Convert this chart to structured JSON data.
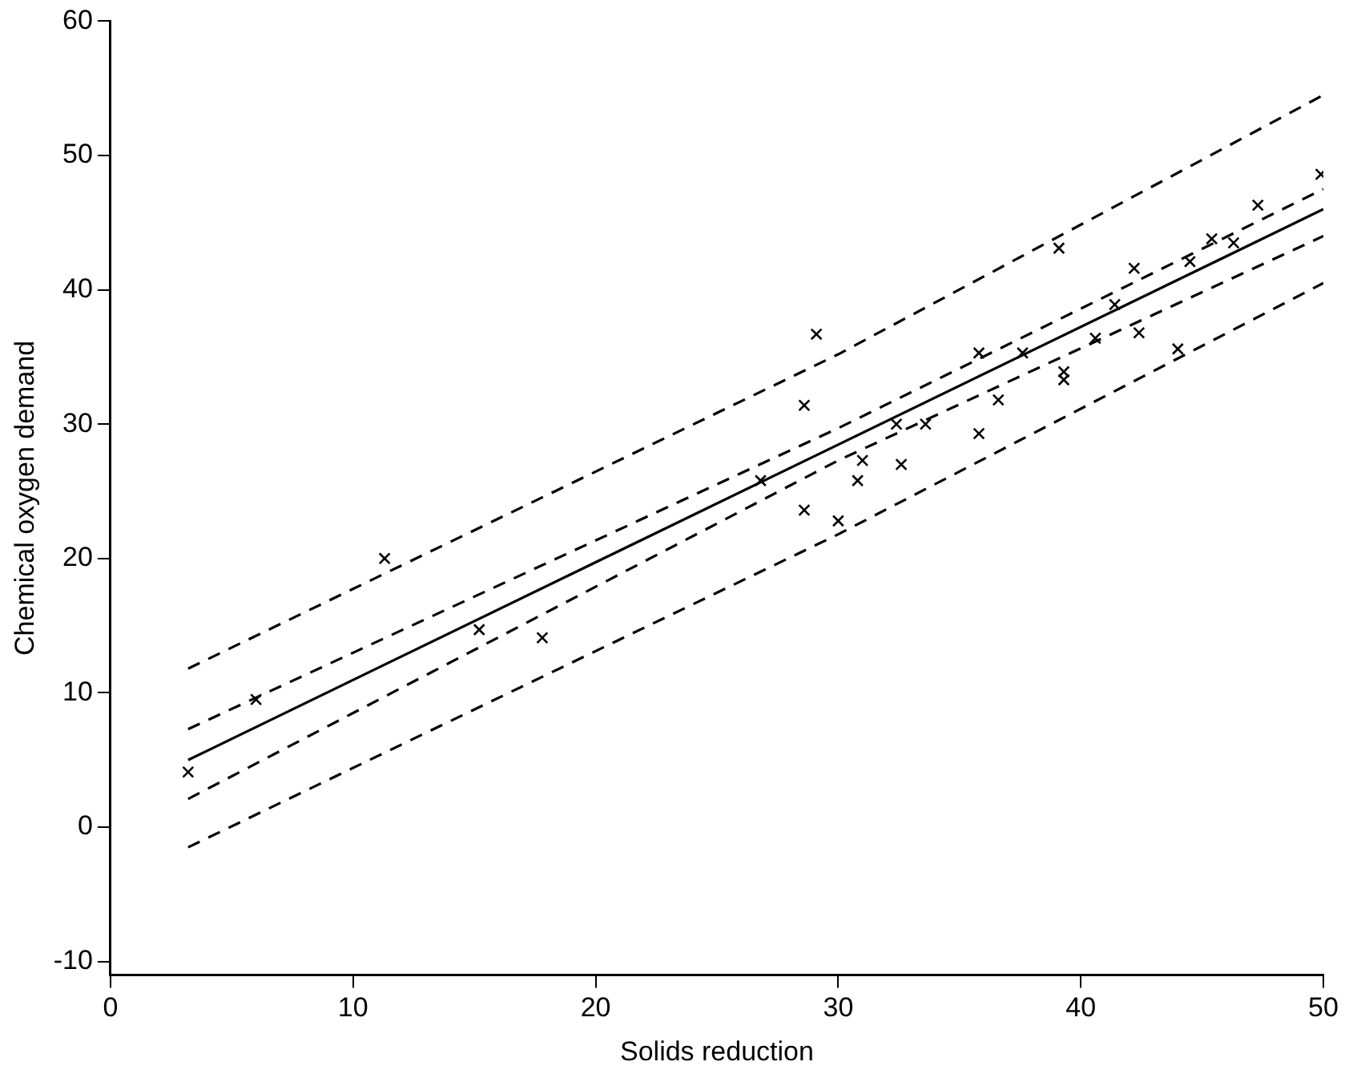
{
  "chart_data": {
    "type": "scatter",
    "xlabel": "Solids reduction",
    "ylabel": "Chemical oxygen demand",
    "xlim": [
      0,
      50
    ],
    "ylim": [
      -11,
      60
    ],
    "xticks": [
      0,
      10,
      20,
      30,
      40,
      50
    ],
    "yticks": [
      -10,
      0,
      10,
      20,
      30,
      40,
      50,
      60
    ],
    "grid": false,
    "legend": false,
    "marker": "cross",
    "series": [
      {
        "type": "scatter",
        "color": "#000000",
        "x": [
          3.2,
          6.0,
          11.3,
          15.2,
          17.8,
          26.8,
          28.6,
          29.1,
          28.6,
          30.0,
          30.8,
          31.0,
          32.4,
          32.6,
          33.6,
          35.8,
          35.8,
          36.6,
          37.6,
          39.3,
          39.3,
          39.1,
          40.6,
          41.4,
          42.2,
          42.4,
          44.0,
          44.5,
          45.4,
          46.3,
          47.3,
          49.9
        ],
        "values": [
          4.1,
          9.5,
          20.0,
          14.7,
          14.1,
          25.8,
          31.4,
          36.7,
          23.6,
          22.8,
          25.8,
          27.3,
          30.0,
          27.0,
          30.0,
          35.3,
          29.3,
          31.8,
          35.3,
          33.9,
          33.3,
          43.1,
          36.4,
          38.9,
          41.6,
          36.8,
          35.6,
          42.1,
          43.8,
          43.5,
          46.3,
          48.6
        ]
      },
      {
        "type": "line",
        "color": "#000000",
        "line_style": "solid",
        "marker": "none",
        "x": [
          3.2,
          50
        ],
        "values": [
          5.0,
          46.0
        ]
      },
      {
        "type": "line",
        "color": "#000000",
        "line_style": "dashed",
        "marker": "none",
        "x": [
          3.2,
          30,
          50
        ],
        "values": [
          7.3,
          29.7,
          47.5
        ]
      },
      {
        "type": "line",
        "color": "#000000",
        "line_style": "dashed",
        "marker": "none",
        "x": [
          3.2,
          30,
          50
        ],
        "values": [
          2.1,
          27.3,
          44.0
        ]
      },
      {
        "type": "line",
        "color": "#000000",
        "line_style": "dashed",
        "marker": "none",
        "x": [
          3.2,
          30,
          50
        ],
        "values": [
          11.8,
          35.2,
          54.5
        ]
      },
      {
        "type": "line",
        "color": "#000000",
        "line_style": "dashed",
        "marker": "none",
        "x": [
          3.2,
          30,
          50
        ],
        "values": [
          -1.5,
          21.8,
          40.5
        ]
      }
    ]
  }
}
